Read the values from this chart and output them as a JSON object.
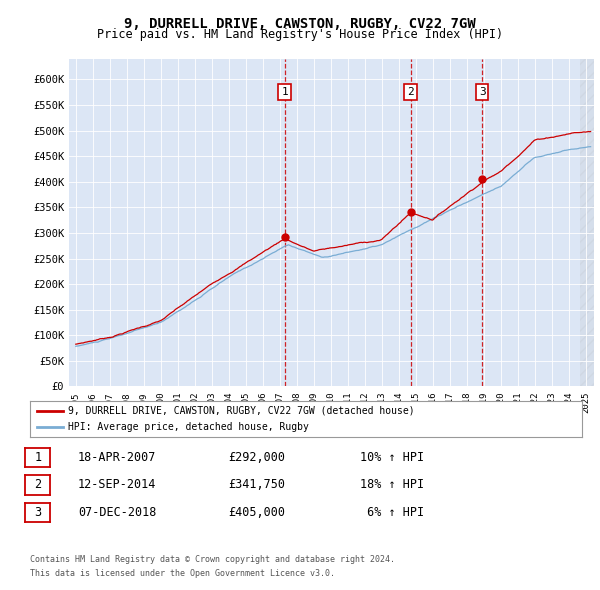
{
  "title1": "9, DURRELL DRIVE, CAWSTON, RUGBY, CV22 7GW",
  "title2": "Price paid vs. HM Land Registry's House Price Index (HPI)",
  "yticks": [
    0,
    50000,
    100000,
    150000,
    200000,
    250000,
    300000,
    350000,
    400000,
    450000,
    500000,
    550000,
    600000
  ],
  "ylim": [
    0,
    640000
  ],
  "xlim_start": 1994.6,
  "xlim_end": 2025.5,
  "plot_bg": "#dce6f5",
  "sale_dates": [
    2007.29,
    2014.7,
    2018.92
  ],
  "sale_prices": [
    292000,
    341750,
    405000
  ],
  "sale_labels": [
    "1",
    "2",
    "3"
  ],
  "legend_red_label": "9, DURRELL DRIVE, CAWSTON, RUGBY, CV22 7GW (detached house)",
  "legend_blue_label": "HPI: Average price, detached house, Rugby",
  "table_rows": [
    {
      "num": "1",
      "date": "18-APR-2007",
      "price": "£292,000",
      "hpi": "10% ↑ HPI"
    },
    {
      "num": "2",
      "date": "12-SEP-2014",
      "price": "£341,750",
      "hpi": "18% ↑ HPI"
    },
    {
      "num": "3",
      "date": "07-DEC-2018",
      "price": "£405,000",
      "hpi": " 6% ↑ HPI"
    }
  ],
  "footer": "Contains HM Land Registry data © Crown copyright and database right 2024.\nThis data is licensed under the Open Government Licence v3.0.",
  "red_color": "#cc0000",
  "blue_color": "#7aadd4",
  "vline_color": "#cc0000"
}
